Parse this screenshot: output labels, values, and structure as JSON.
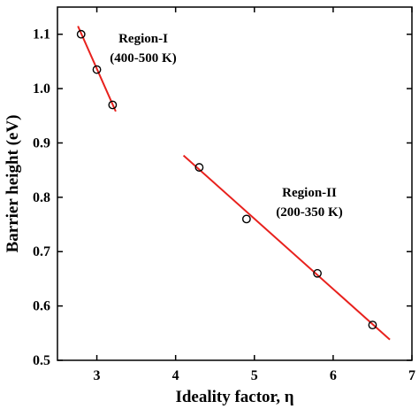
{
  "chart_data": {
    "type": "scatter",
    "xlabel": "Ideality factor, η",
    "ylabel": "Barrier height (eV)",
    "xlim": [
      2.5,
      7.0
    ],
    "ylim": [
      0.5,
      1.15
    ],
    "x_ticks": [
      3,
      4,
      5,
      6,
      7
    ],
    "x_tick_labels": [
      "3",
      "4",
      "5",
      "6",
      "7"
    ],
    "y_ticks": [
      0.5,
      0.6,
      0.7,
      0.8,
      0.9,
      1.0,
      1.1
    ],
    "y_tick_labels": [
      "0.5",
      "0.6",
      "0.7",
      "0.8",
      "0.9",
      "1.0",
      "1.1"
    ],
    "grid": false,
    "marker_color": "#000000",
    "fit_color": "#e8211d",
    "series": [
      {
        "x": [
          2.8,
          3.0,
          3.2
        ],
        "y": [
          1.1,
          1.035,
          0.97
        ],
        "fit": {
          "x": [
            2.76,
            3.24
          ],
          "y": [
            1.115,
            0.958
          ]
        },
        "annotation": [
          "Region-I",
          "(400-500 K)"
        ]
      },
      {
        "x": [
          4.3,
          4.9,
          5.8,
          6.5
        ],
        "y": [
          0.855,
          0.76,
          0.66,
          0.565
        ],
        "fit": {
          "x": [
            4.1,
            6.72
          ],
          "y": [
            0.877,
            0.538
          ]
        },
        "annotation": [
          "Region-II",
          "(200-350 K)"
        ]
      }
    ]
  }
}
